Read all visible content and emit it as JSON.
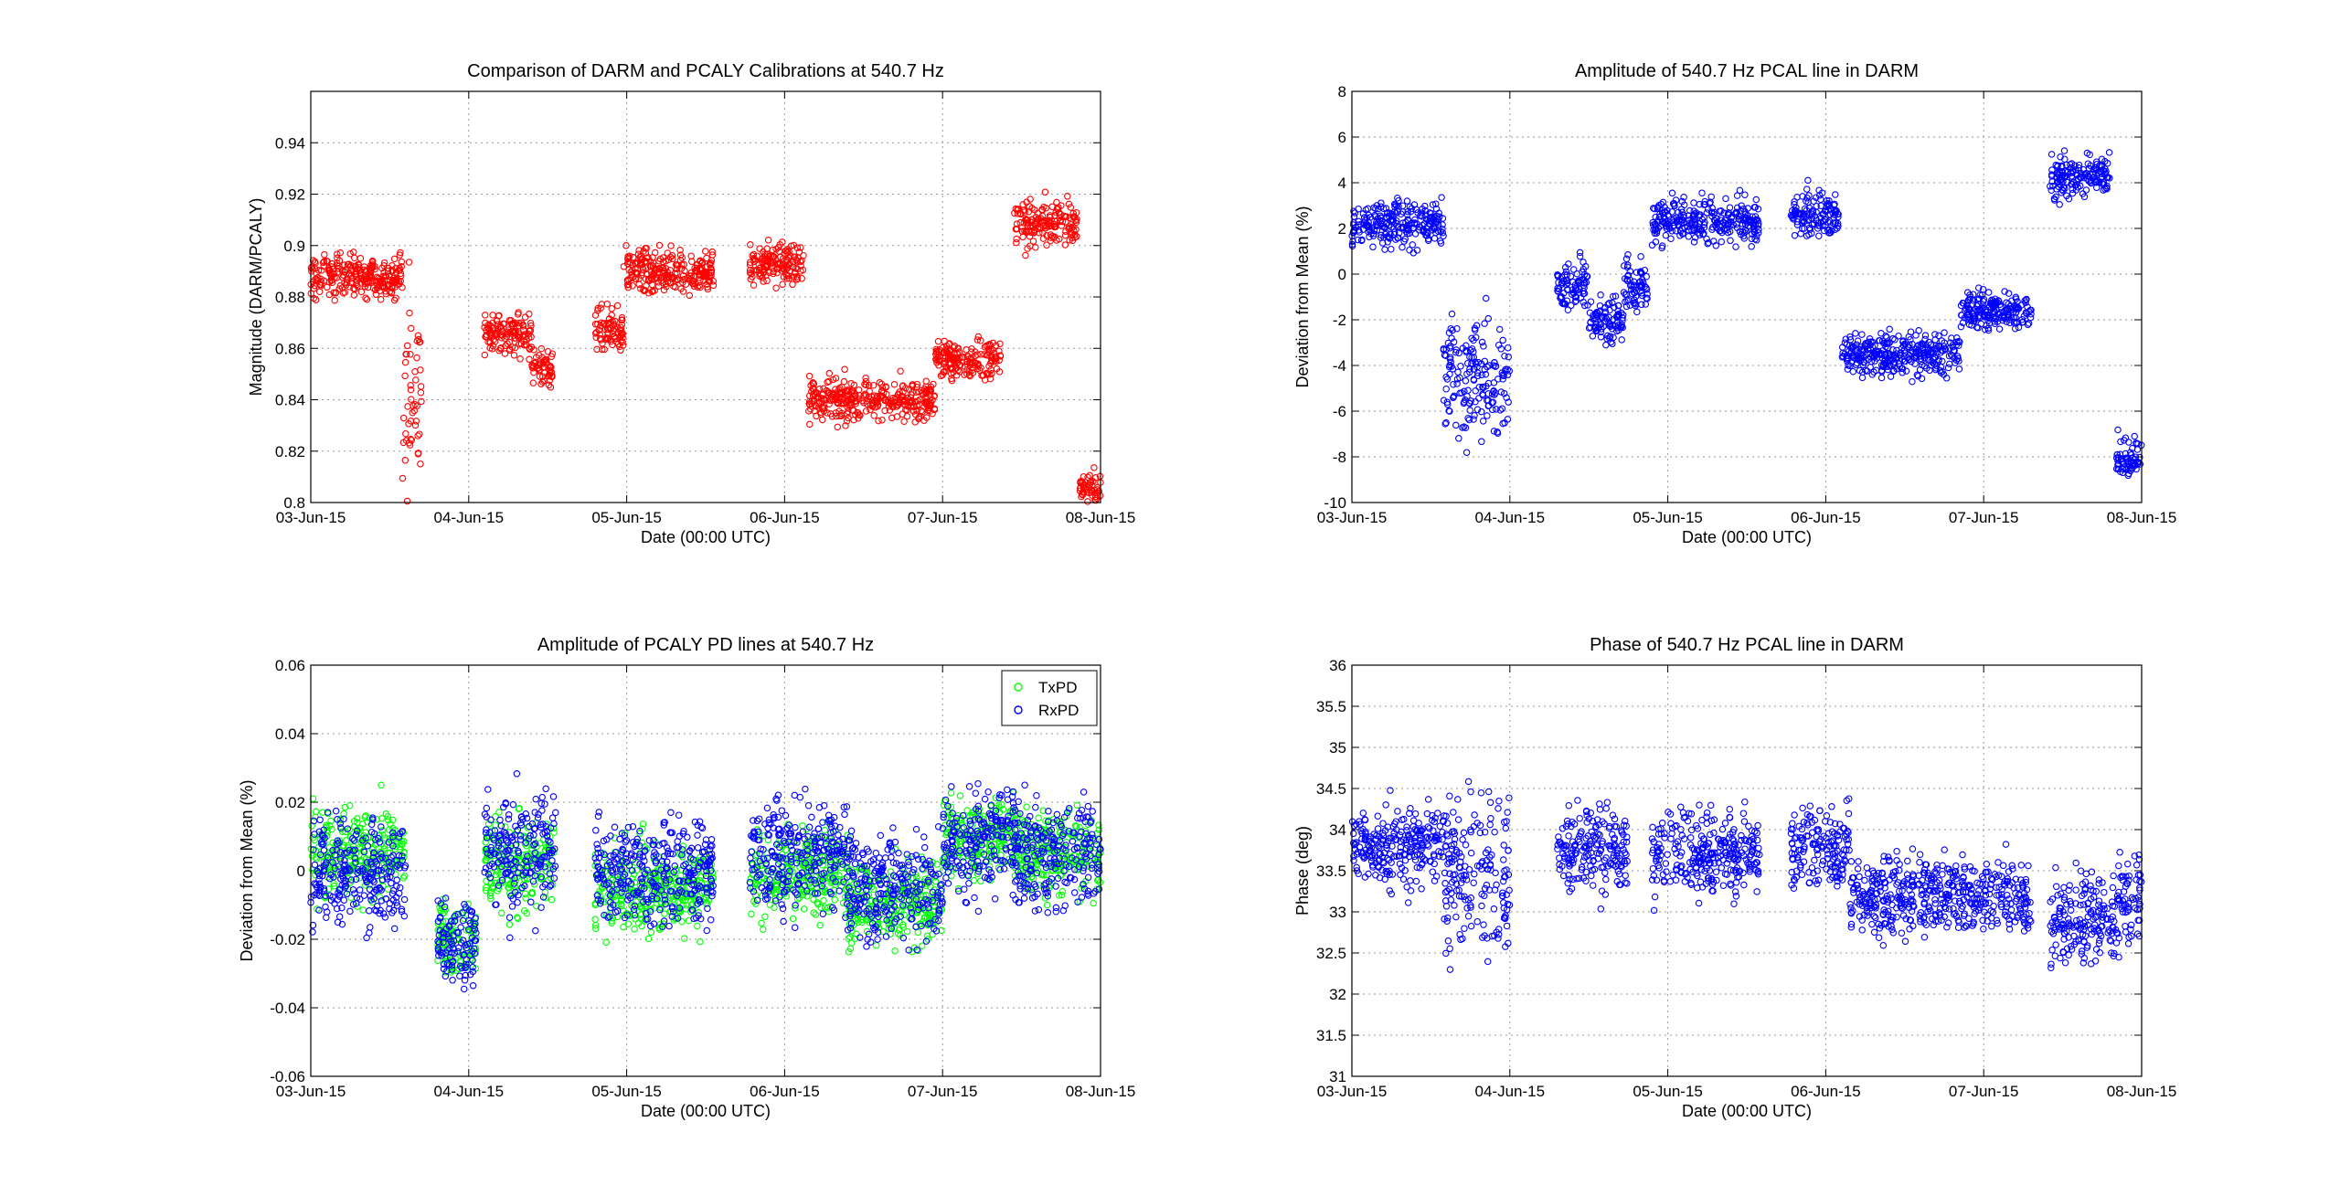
{
  "chart_data": [
    {
      "type": "scatter",
      "title": "Comparison of DARM and PCALY Calibrations at 540.7 Hz",
      "xlabel": "Date (00:00 UTC)",
      "ylabel": "Magnitude (DARM/PCALY)",
      "x_ticks": [
        "03-Jun-15",
        "04-Jun-15",
        "05-Jun-15",
        "06-Jun-15",
        "07-Jun-15",
        "08-Jun-15"
      ],
      "xlim": [
        0,
        5
      ],
      "ylim": [
        0.8,
        0.96
      ],
      "y_ticks": [
        "0.8",
        "0.82",
        "0.84",
        "0.86",
        "0.88",
        "0.9",
        "0.92",
        "0.94"
      ],
      "grid": true,
      "marker": "circle",
      "series": [
        {
          "color": "#ff0000",
          "segments": [
            {
              "x": [
                0.0,
                0.58
              ],
              "mean": 0.888,
              "spread": 0.008
            },
            {
              "x": [
                0.58,
                0.7
              ],
              "mean": 0.84,
              "spread": 0.04
            },
            {
              "x": [
                1.1,
                1.4
              ],
              "mean": 0.866,
              "spread": 0.008
            },
            {
              "x": [
                1.4,
                1.53
              ],
              "mean": 0.852,
              "spread": 0.007
            },
            {
              "x": [
                1.8,
                1.98
              ],
              "mean": 0.866,
              "spread": 0.009
            },
            {
              "x": [
                1.98,
                2.55
              ],
              "mean": 0.89,
              "spread": 0.008
            },
            {
              "x": [
                2.78,
                3.12
              ],
              "mean": 0.893,
              "spread": 0.008
            },
            {
              "x": [
                3.15,
                3.95
              ],
              "mean": 0.84,
              "spread": 0.008
            },
            {
              "x": [
                3.95,
                4.37
              ],
              "mean": 0.856,
              "spread": 0.007
            },
            {
              "x": [
                4.45,
                4.85
              ],
              "mean": 0.908,
              "spread": 0.009
            },
            {
              "x": [
                4.87,
                5.0
              ],
              "mean": 0.805,
              "spread": 0.006
            }
          ]
        }
      ]
    },
    {
      "type": "scatter",
      "title": "Amplitude of 540.7 Hz PCAL line in DARM",
      "xlabel": "Date (00:00 UTC)",
      "ylabel": "Deviation from Mean (%)",
      "x_ticks": [
        "03-Jun-15",
        "04-Jun-15",
        "05-Jun-15",
        "06-Jun-15",
        "07-Jun-15",
        "08-Jun-15"
      ],
      "xlim": [
        0,
        5
      ],
      "ylim": [
        -10,
        8
      ],
      "y_ticks": [
        "-10",
        "-8",
        "-6",
        "-4",
        "-2",
        "0",
        "2",
        "4",
        "6",
        "8"
      ],
      "grid": true,
      "marker": "circle",
      "series": [
        {
          "color": "#0000ff",
          "segments": [
            {
              "x": [
                0.0,
                0.58
              ],
              "mean": 2.2,
              "spread": 1.0
            },
            {
              "x": [
                0.58,
                1.0
              ],
              "mean": -4.5,
              "spread": 2.5
            },
            {
              "x": [
                1.3,
                1.5
              ],
              "mean": -0.5,
              "spread": 1.0
            },
            {
              "x": [
                1.5,
                1.72
              ],
              "mean": -2.0,
              "spread": 1.0
            },
            {
              "x": [
                1.72,
                1.88
              ],
              "mean": -0.5,
              "spread": 1.2
            },
            {
              "x": [
                1.9,
                2.58
              ],
              "mean": 2.3,
              "spread": 1.0
            },
            {
              "x": [
                2.78,
                3.08
              ],
              "mean": 2.6,
              "spread": 1.0
            },
            {
              "x": [
                3.1,
                3.85
              ],
              "mean": -3.5,
              "spread": 0.9
            },
            {
              "x": [
                3.85,
                4.3
              ],
              "mean": -1.6,
              "spread": 0.8
            },
            {
              "x": [
                4.42,
                4.8
              ],
              "mean": 4.3,
              "spread": 0.9
            },
            {
              "x": [
                4.84,
                5.0
              ],
              "mean": -8.0,
              "spread": 0.8
            }
          ]
        }
      ]
    },
    {
      "type": "scatter",
      "title": "Amplitude of PCALY PD lines at 540.7 Hz",
      "xlabel": "Date (00:00 UTC)",
      "ylabel": "Deviation from Mean (%)",
      "x_ticks": [
        "03-Jun-15",
        "04-Jun-15",
        "05-Jun-15",
        "06-Jun-15",
        "07-Jun-15",
        "08-Jun-15"
      ],
      "xlim": [
        0,
        5
      ],
      "ylim": [
        -0.06,
        0.06
      ],
      "y_ticks": [
        "-0.06",
        "-0.04",
        "-0.02",
        "0",
        "0.02",
        "0.04",
        "0.06"
      ],
      "grid": true,
      "marker": "circle",
      "legend_position": "top-right",
      "series": [
        {
          "name": "TxPD",
          "color": "#00ff00",
          "segments": [
            {
              "x": [
                0.0,
                0.6
              ],
              "mean": 0.005,
              "spread": 0.013
            },
            {
              "x": [
                0.8,
                1.05
              ],
              "mean": -0.02,
              "spread": 0.01
            },
            {
              "x": [
                1.1,
                1.55
              ],
              "mean": 0.002,
              "spread": 0.014
            },
            {
              "x": [
                1.8,
                2.55
              ],
              "mean": -0.005,
              "spread": 0.013
            },
            {
              "x": [
                2.78,
                3.4
              ],
              "mean": 0.0,
              "spread": 0.013
            },
            {
              "x": [
                3.4,
                4.0
              ],
              "mean": -0.01,
              "spread": 0.012
            },
            {
              "x": [
                4.0,
                4.45
              ],
              "mean": 0.01,
              "spread": 0.012
            },
            {
              "x": [
                4.45,
                5.0
              ],
              "mean": 0.005,
              "spread": 0.012
            }
          ]
        },
        {
          "name": "RxPD",
          "color": "#0000ff",
          "segments": [
            {
              "x": [
                0.0,
                0.6
              ],
              "mean": 0.0,
              "spread": 0.015
            },
            {
              "x": [
                0.8,
                1.05
              ],
              "mean": -0.02,
              "spread": 0.012
            },
            {
              "x": [
                1.1,
                1.55
              ],
              "mean": 0.005,
              "spread": 0.017
            },
            {
              "x": [
                1.8,
                2.55
              ],
              "mean": 0.0,
              "spread": 0.016
            },
            {
              "x": [
                2.78,
                3.4
              ],
              "mean": 0.005,
              "spread": 0.016
            },
            {
              "x": [
                3.4,
                4.0
              ],
              "mean": -0.005,
              "spread": 0.016
            },
            {
              "x": [
                4.0,
                4.45
              ],
              "mean": 0.008,
              "spread": 0.015
            },
            {
              "x": [
                4.45,
                5.0
              ],
              "mean": 0.005,
              "spread": 0.015
            }
          ]
        }
      ]
    },
    {
      "type": "scatter",
      "title": "Phase of 540.7 Hz PCAL line in DARM",
      "xlabel": "Date (00:00 UTC)",
      "ylabel": "Phase (deg)",
      "x_ticks": [
        "03-Jun-15",
        "04-Jun-15",
        "05-Jun-15",
        "06-Jun-15",
        "07-Jun-15",
        "08-Jun-15"
      ],
      "xlim": [
        0,
        5
      ],
      "ylim": [
        31,
        36
      ],
      "y_ticks": [
        "31",
        "31.5",
        "32",
        "32.5",
        "33",
        "33.5",
        "34",
        "34.5",
        "35",
        "35.5",
        "36"
      ],
      "grid": true,
      "marker": "circle",
      "series": [
        {
          "color": "#0000ff",
          "segments": [
            {
              "x": [
                0.0,
                0.58
              ],
              "mean": 33.8,
              "spread": 0.5
            },
            {
              "x": [
                0.58,
                1.0
              ],
              "mean": 33.5,
              "spread": 1.0
            },
            {
              "x": [
                1.3,
                1.75
              ],
              "mean": 33.8,
              "spread": 0.5
            },
            {
              "x": [
                1.9,
                2.58
              ],
              "mean": 33.7,
              "spread": 0.5
            },
            {
              "x": [
                2.78,
                3.15
              ],
              "mean": 33.8,
              "spread": 0.5
            },
            {
              "x": [
                3.15,
                4.3
              ],
              "mean": 33.2,
              "spread": 0.45
            },
            {
              "x": [
                4.42,
                4.85
              ],
              "mean": 32.9,
              "spread": 0.5
            },
            {
              "x": [
                4.85,
                5.0
              ],
              "mean": 33.1,
              "spread": 0.6
            }
          ]
        }
      ]
    }
  ]
}
